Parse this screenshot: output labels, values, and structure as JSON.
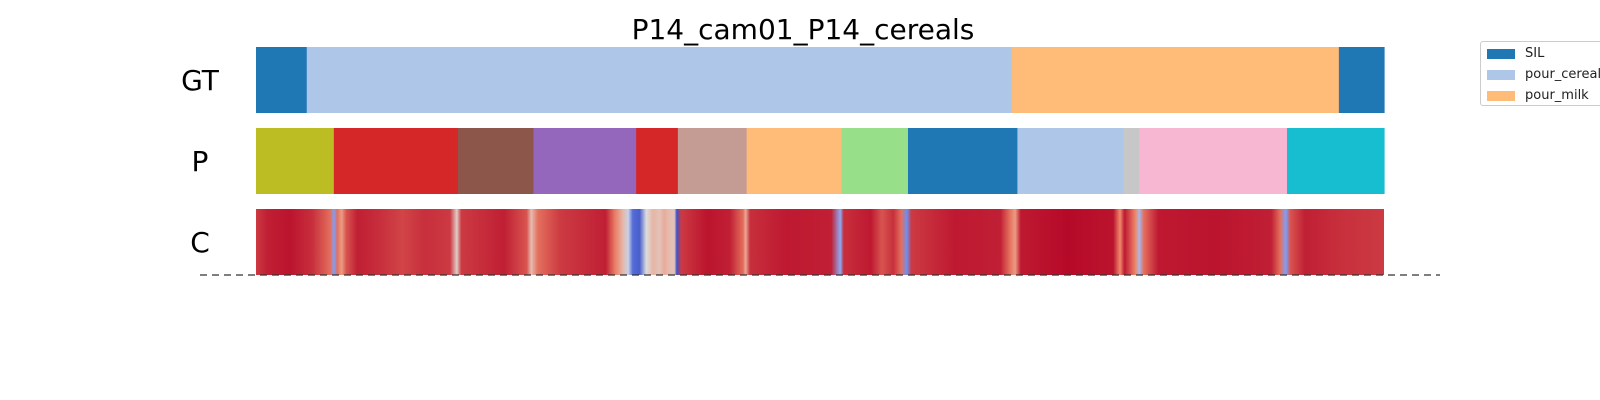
{
  "chart_data": {
    "type": "heatmap",
    "title": "P14_cam01_P14_cereals",
    "x_range": [
      0,
      1
    ],
    "rows": [
      {
        "label": "GT",
        "segments": [
          {
            "start": 0.0,
            "end": 0.045,
            "color": "#1f77b4"
          },
          {
            "start": 0.045,
            "end": 0.67,
            "color": "#aec7e8"
          },
          {
            "start": 0.67,
            "end": 0.96,
            "color": "#ffbb78"
          },
          {
            "start": 0.96,
            "end": 1.0,
            "color": "#1f77b4"
          }
        ]
      },
      {
        "label": "P",
        "segments": [
          {
            "start": 0.0,
            "end": 0.069,
            "color": "#bcbd22"
          },
          {
            "start": 0.069,
            "end": 0.179,
            "color": "#d62728"
          },
          {
            "start": 0.179,
            "end": 0.246,
            "color": "#8c564b"
          },
          {
            "start": 0.246,
            "end": 0.337,
            "color": "#9467bd"
          },
          {
            "start": 0.337,
            "end": 0.374,
            "color": "#d62728"
          },
          {
            "start": 0.374,
            "end": 0.435,
            "color": "#c49c94"
          },
          {
            "start": 0.435,
            "end": 0.519,
            "color": "#ffbb78"
          },
          {
            "start": 0.519,
            "end": 0.578,
            "color": "#98df8a"
          },
          {
            "start": 0.578,
            "end": 0.675,
            "color": "#1f77b4"
          },
          {
            "start": 0.675,
            "end": 0.769,
            "color": "#aec7e8"
          },
          {
            "start": 0.769,
            "end": 0.783,
            "color": "#c7c7c7"
          },
          {
            "start": 0.783,
            "end": 0.914,
            "color": "#f7b6d2"
          },
          {
            "start": 0.914,
            "end": 1.0,
            "color": "#17becf"
          }
        ]
      },
      {
        "label": "C",
        "type": "confidence",
        "colormap": "coolwarm",
        "stops": [
          {
            "x": 0.0,
            "v": 0.9
          },
          {
            "x": 0.01,
            "v": 0.95
          },
          {
            "x": 0.03,
            "v": 0.97
          },
          {
            "x": 0.05,
            "v": 0.92
          },
          {
            "x": 0.066,
            "v": 0.8
          },
          {
            "x": 0.069,
            "v": 0.25
          },
          {
            "x": 0.072,
            "v": 0.8
          },
          {
            "x": 0.076,
            "v": 0.7
          },
          {
            "x": 0.08,
            "v": 0.85
          },
          {
            "x": 0.09,
            "v": 0.95
          },
          {
            "x": 0.11,
            "v": 0.92
          },
          {
            "x": 0.13,
            "v": 0.88
          },
          {
            "x": 0.15,
            "v": 0.92
          },
          {
            "x": 0.172,
            "v": 0.9
          },
          {
            "x": 0.178,
            "v": 0.55
          },
          {
            "x": 0.182,
            "v": 0.9
          },
          {
            "x": 0.22,
            "v": 0.95
          },
          {
            "x": 0.24,
            "v": 0.85
          },
          {
            "x": 0.244,
            "v": 0.6
          },
          {
            "x": 0.25,
            "v": 0.8
          },
          {
            "x": 0.27,
            "v": 0.9
          },
          {
            "x": 0.31,
            "v": 0.95
          },
          {
            "x": 0.318,
            "v": 0.78
          },
          {
            "x": 0.325,
            "v": 0.62
          },
          {
            "x": 0.33,
            "v": 0.45
          },
          {
            "x": 0.334,
            "v": 0.1
          },
          {
            "x": 0.34,
            "v": 0.05
          },
          {
            "x": 0.346,
            "v": 0.5
          },
          {
            "x": 0.352,
            "v": 0.62
          },
          {
            "x": 0.358,
            "v": 0.58
          },
          {
            "x": 0.362,
            "v": 0.65
          },
          {
            "x": 0.366,
            "v": 0.6
          },
          {
            "x": 0.371,
            "v": 0.58
          },
          {
            "x": 0.373,
            "v": 0.02
          },
          {
            "x": 0.377,
            "v": 0.9
          },
          {
            "x": 0.4,
            "v": 0.97
          },
          {
            "x": 0.42,
            "v": 0.95
          },
          {
            "x": 0.432,
            "v": 0.8
          },
          {
            "x": 0.434,
            "v": 0.65
          },
          {
            "x": 0.438,
            "v": 0.92
          },
          {
            "x": 0.47,
            "v": 0.96
          },
          {
            "x": 0.51,
            "v": 0.95
          },
          {
            "x": 0.518,
            "v": 0.3
          },
          {
            "x": 0.521,
            "v": 0.92
          },
          {
            "x": 0.545,
            "v": 0.96
          },
          {
            "x": 0.555,
            "v": 0.85
          },
          {
            "x": 0.565,
            "v": 0.92
          },
          {
            "x": 0.572,
            "v": 0.8
          },
          {
            "x": 0.577,
            "v": 0.2
          },
          {
            "x": 0.581,
            "v": 0.9
          },
          {
            "x": 0.62,
            "v": 0.96
          },
          {
            "x": 0.66,
            "v": 0.95
          },
          {
            "x": 0.668,
            "v": 0.8
          },
          {
            "x": 0.673,
            "v": 0.7
          },
          {
            "x": 0.678,
            "v": 0.96
          },
          {
            "x": 0.72,
            "v": 0.99
          },
          {
            "x": 0.76,
            "v": 0.97
          },
          {
            "x": 0.766,
            "v": 0.75
          },
          {
            "x": 0.77,
            "v": 0.96
          },
          {
            "x": 0.78,
            "v": 0.75
          },
          {
            "x": 0.783,
            "v": 0.35
          },
          {
            "x": 0.787,
            "v": 0.8
          },
          {
            "x": 0.8,
            "v": 0.96
          },
          {
            "x": 0.85,
            "v": 0.97
          },
          {
            "x": 0.9,
            "v": 0.95
          },
          {
            "x": 0.908,
            "v": 0.8
          },
          {
            "x": 0.913,
            "v": 0.25
          },
          {
            "x": 0.917,
            "v": 0.85
          },
          {
            "x": 0.93,
            "v": 0.95
          },
          {
            "x": 0.96,
            "v": 0.92
          },
          {
            "x": 1.0,
            "v": 0.9
          }
        ]
      }
    ],
    "legend": {
      "placement": "upper-right-outside",
      "entries": [
        {
          "label": "SIL",
          "color": "#1f77b4"
        },
        {
          "label": "pour_cereals",
          "color": "#aec7e8"
        },
        {
          "label": "pour_milk",
          "color": "#ffbb78"
        }
      ]
    }
  }
}
